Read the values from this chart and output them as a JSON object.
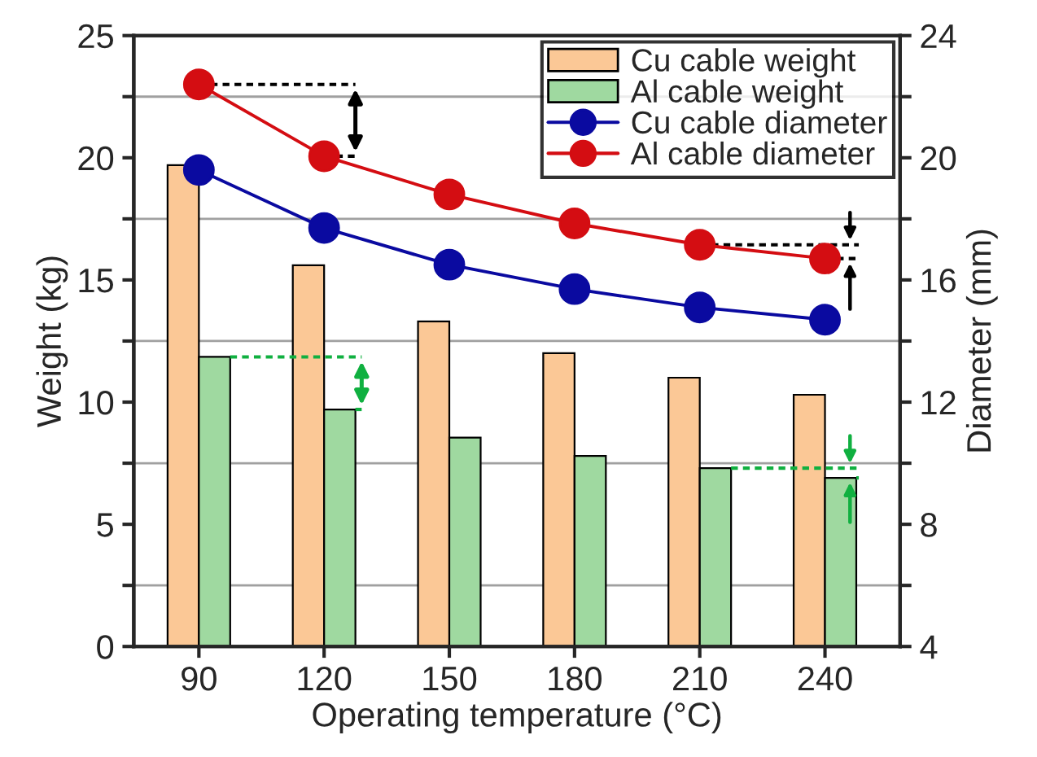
{
  "chart_data": {
    "type": "bar",
    "xlabel": "Operating temperature (°C)",
    "ylabel": "Weight (kg)",
    "y2label": "Diameter (mm)",
    "categories": [
      "90",
      "120",
      "150",
      "180",
      "210",
      "240"
    ],
    "series": [
      {
        "name": "Cu cable weight",
        "color": "#fbc896",
        "values": [
          19.7,
          15.6,
          13.3,
          12.0,
          11.0,
          10.3
        ]
      },
      {
        "name": "Al cable weight",
        "color": "#9fd9a0",
        "values": [
          11.85,
          9.7,
          8.55,
          7.8,
          7.3,
          6.9
        ]
      },
      {
        "name": "Cu cable diameter",
        "type": "line",
        "axis": "y2",
        "color": "#0a0aa0",
        "marker": "circle",
        "values": [
          19.6,
          17.7,
          16.5,
          15.7,
          15.1,
          14.7
        ]
      },
      {
        "name": "Al cable diameter",
        "type": "line",
        "axis": "y2",
        "color": "#d40d12",
        "marker": "circle",
        "values": [
          22.4,
          20.05,
          18.8,
          17.85,
          17.15,
          16.7
        ]
      }
    ],
    "ylim": [
      0,
      25
    ],
    "yticks": [
      0,
      {
        "value": 2.5,
        "label": null
      },
      5,
      {
        "value": 7.5,
        "label": null
      },
      10,
      {
        "value": 12.5,
        "label": null
      },
      15,
      {
        "value": 17.5,
        "label": null
      },
      20,
      {
        "value": 22.5,
        "label": null
      },
      25
    ],
    "y2lim": [
      4,
      24
    ],
    "y2ticks": [
      4,
      {
        "value": 6,
        "label": null
      },
      8,
      {
        "value": 10,
        "label": null
      },
      12,
      {
        "value": 14,
        "label": null
      },
      16,
      {
        "value": 18,
        "label": null
      },
      20,
      {
        "value": 22,
        "label": null
      },
      24
    ],
    "grid": "y",
    "legend": "top right"
  }
}
